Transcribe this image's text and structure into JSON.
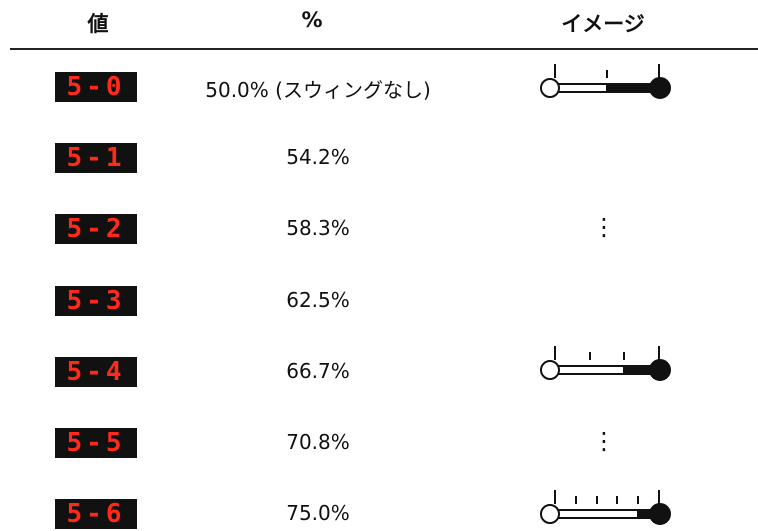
{
  "header": {
    "display": "値",
    "percent": "%",
    "image": "イメージ"
  },
  "rows": [
    {
      "display": "5-0",
      "percent": "50.0% (スウィングなし)"
    },
    {
      "display": "5-1",
      "percent": "54.2%"
    },
    {
      "display": "5-2",
      "percent": "58.3%",
      "image": "⋮"
    },
    {
      "display": "5-3",
      "percent": "62.5%"
    },
    {
      "display": "5-4",
      "percent": "66.7%"
    },
    {
      "display": "5-5",
      "percent": "70.8%",
      "image": "⋮"
    },
    {
      "display": "5-6",
      "percent": "75.0%"
    }
  ]
}
